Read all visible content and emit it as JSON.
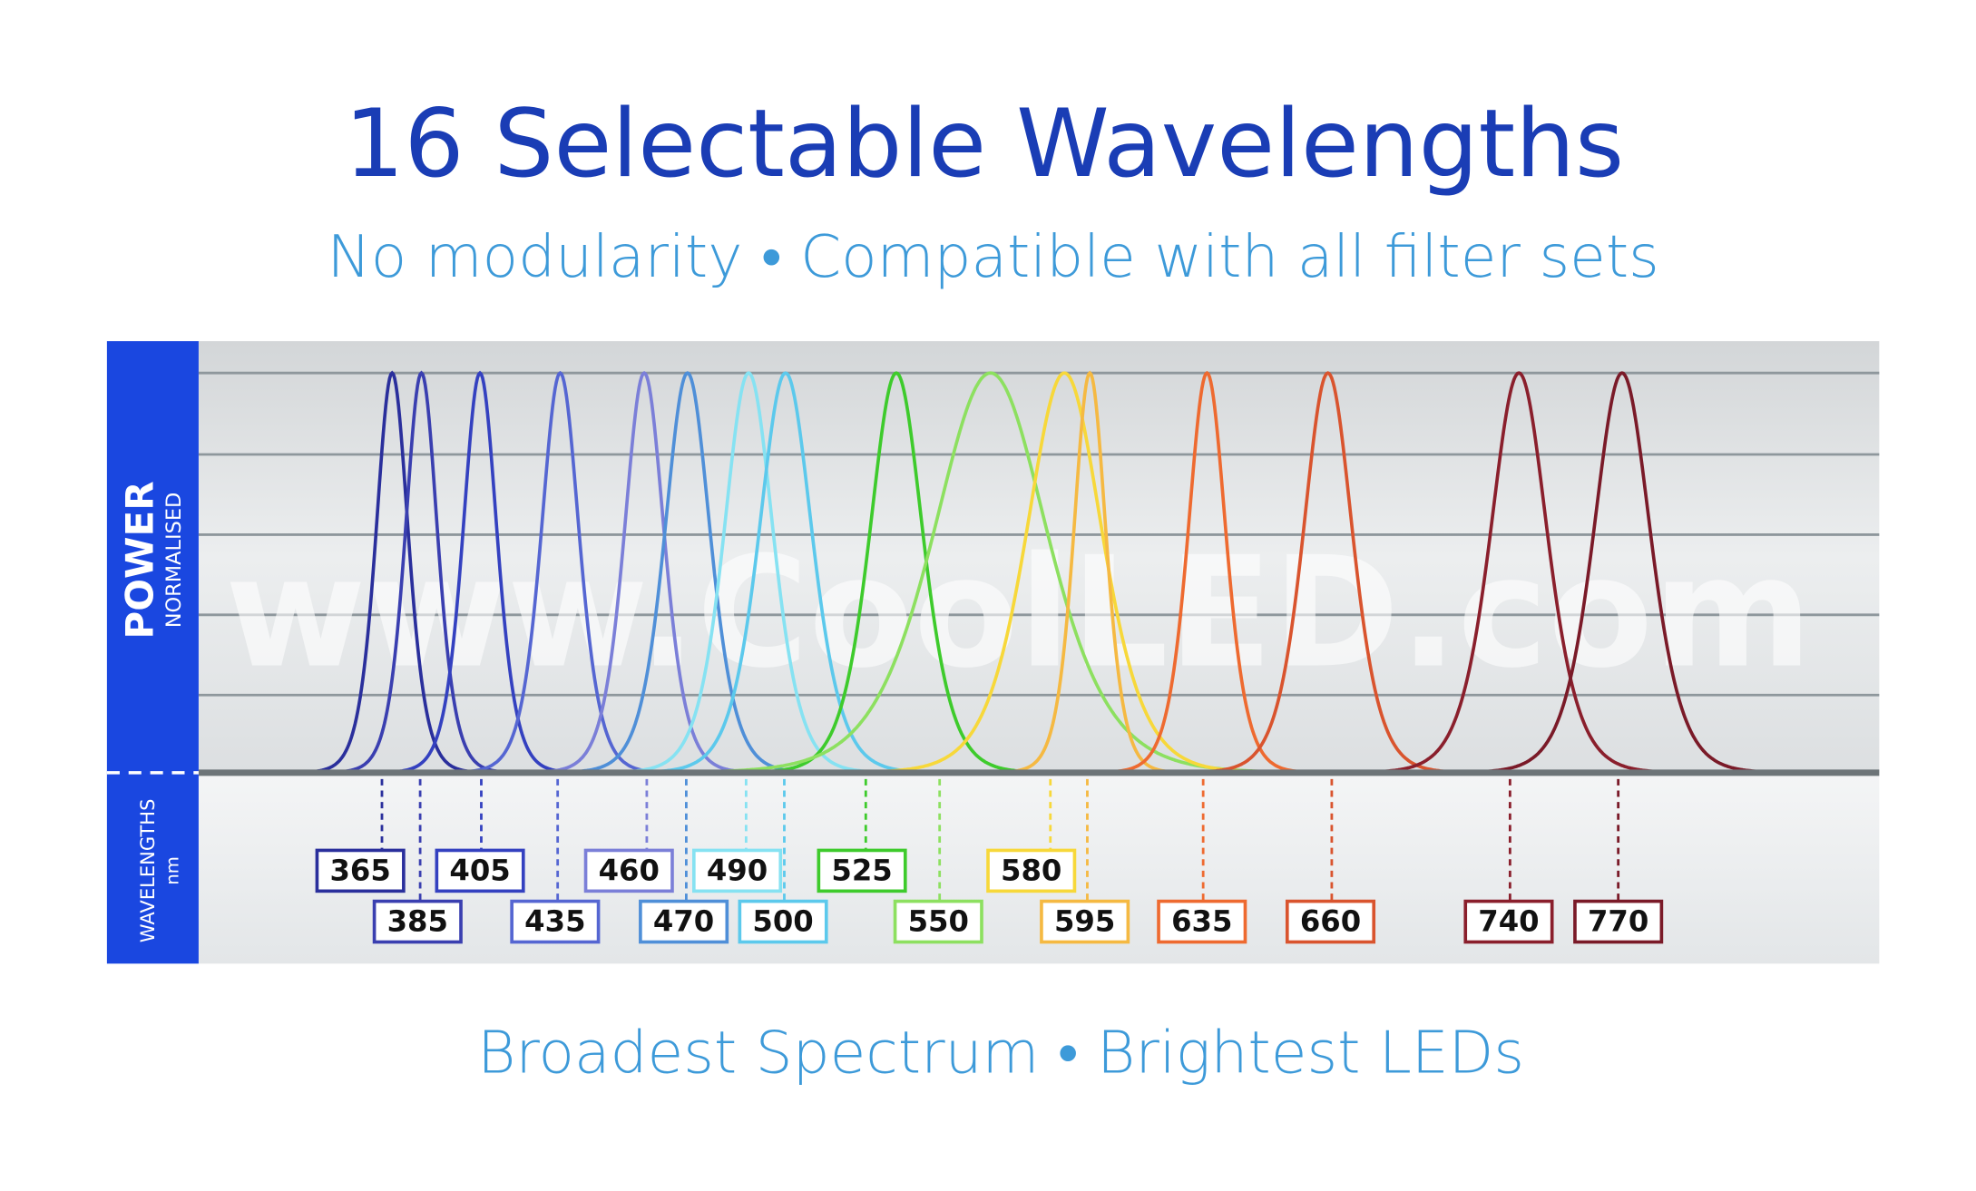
{
  "header": {
    "title": "16 Selectable Wavelengths",
    "subtitle": "No modularity • Compatible with all filter sets"
  },
  "panel": {
    "y_label": "POWER",
    "y_sublabel": "NORMALISED",
    "x_label": "WAVELENGTHS",
    "x_unit": "nm",
    "watermark": "www.CoolLED.com"
  },
  "leds": [
    {
      "label": "365",
      "color": "#2a2f9c"
    },
    {
      "label": "385",
      "color": "#3a3fb0"
    },
    {
      "label": "405",
      "color": "#3441c0"
    },
    {
      "label": "435",
      "color": "#5566d2"
    },
    {
      "label": "460",
      "color": "#7b7fd8"
    },
    {
      "label": "470",
      "color": "#4f8fd8"
    },
    {
      "label": "490",
      "color": "#86e2f2"
    },
    {
      "label": "500",
      "color": "#5cc9ec"
    },
    {
      "label": "525",
      "color": "#3ecb2c"
    },
    {
      "label": "550",
      "color": "#8de060"
    },
    {
      "label": "580",
      "color": "#f7d83a"
    },
    {
      "label": "595",
      "color": "#f5b942"
    },
    {
      "label": "635",
      "color": "#ee6a30"
    },
    {
      "label": "660",
      "color": "#d9542e"
    },
    {
      "label": "740",
      "color": "#8a1f2c"
    },
    {
      "label": "770",
      "color": "#7a1a28"
    }
  ],
  "footer": {
    "tagline": "Broadest Spectrum • Brightest LEDs"
  }
}
